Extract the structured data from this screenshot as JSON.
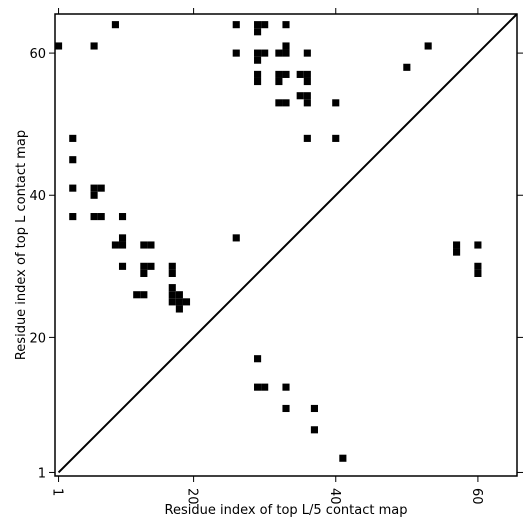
{
  "chart_data": {
    "type": "scatter",
    "title": "",
    "xlabel": "Residue index of top L/5 contact map",
    "ylabel": "Residue index of top L contact map",
    "xlim": [
      0.5,
      65.5
    ],
    "ylim": [
      0.5,
      65.5
    ],
    "xticks": [
      1,
      20,
      40,
      60
    ],
    "yticks": [
      1,
      20,
      40,
      60
    ],
    "grid": false,
    "legend": "none",
    "marker": "square",
    "colors": {
      "points": "#000000",
      "diagonal": "#000000",
      "frame": "#000000"
    },
    "diagonal": {
      "from": [
        1,
        1
      ],
      "to": [
        65,
        65
      ]
    },
    "upper_points": [
      [
        9,
        64
      ],
      [
        26,
        64
      ],
      [
        29,
        64
      ],
      [
        30,
        64
      ],
      [
        33,
        64
      ],
      [
        29,
        63
      ],
      [
        1,
        61
      ],
      [
        6,
        61
      ],
      [
        33,
        61
      ],
      [
        53,
        61
      ],
      [
        26,
        60
      ],
      [
        29,
        60
      ],
      [
        30,
        60
      ],
      [
        32,
        60
      ],
      [
        33,
        60
      ],
      [
        36,
        60
      ],
      [
        29,
        59
      ],
      [
        50,
        58
      ],
      [
        29,
        57
      ],
      [
        32,
        57
      ],
      [
        33,
        57
      ],
      [
        35,
        57
      ],
      [
        36,
        57
      ],
      [
        29,
        56
      ],
      [
        32,
        56
      ],
      [
        36,
        56
      ],
      [
        35,
        54
      ],
      [
        36,
        54
      ],
      [
        32,
        53
      ],
      [
        33,
        53
      ],
      [
        36,
        53
      ],
      [
        40,
        53
      ],
      [
        3,
        48
      ],
      [
        36,
        48
      ],
      [
        40,
        48
      ],
      [
        3,
        45
      ],
      [
        3,
        41
      ],
      [
        6,
        41
      ],
      [
        7,
        41
      ],
      [
        6,
        40
      ],
      [
        3,
        37
      ],
      [
        6,
        37
      ],
      [
        7,
        37
      ],
      [
        10,
        37
      ],
      [
        26,
        34
      ],
      [
        10,
        34
      ],
      [
        9,
        33
      ],
      [
        10,
        33
      ],
      [
        13,
        33
      ],
      [
        14,
        33
      ],
      [
        13,
        30
      ],
      [
        14,
        30
      ],
      [
        17,
        30
      ],
      [
        10,
        30
      ],
      [
        13,
        29
      ],
      [
        17,
        29
      ],
      [
        17,
        27
      ],
      [
        12,
        26
      ],
      [
        13,
        26
      ],
      [
        17,
        26
      ],
      [
        18,
        26
      ],
      [
        17,
        25
      ],
      [
        18,
        25
      ],
      [
        19,
        25
      ],
      [
        18,
        24
      ]
    ],
    "lower_points": [
      [
        57,
        33
      ],
      [
        60,
        33
      ],
      [
        57,
        32
      ],
      [
        60,
        30
      ],
      [
        60,
        29
      ],
      [
        29,
        17
      ],
      [
        29,
        13
      ],
      [
        30,
        13
      ],
      [
        33,
        13
      ],
      [
        33,
        10
      ],
      [
        37,
        10
      ],
      [
        37,
        7
      ],
      [
        41,
        3
      ]
    ]
  }
}
